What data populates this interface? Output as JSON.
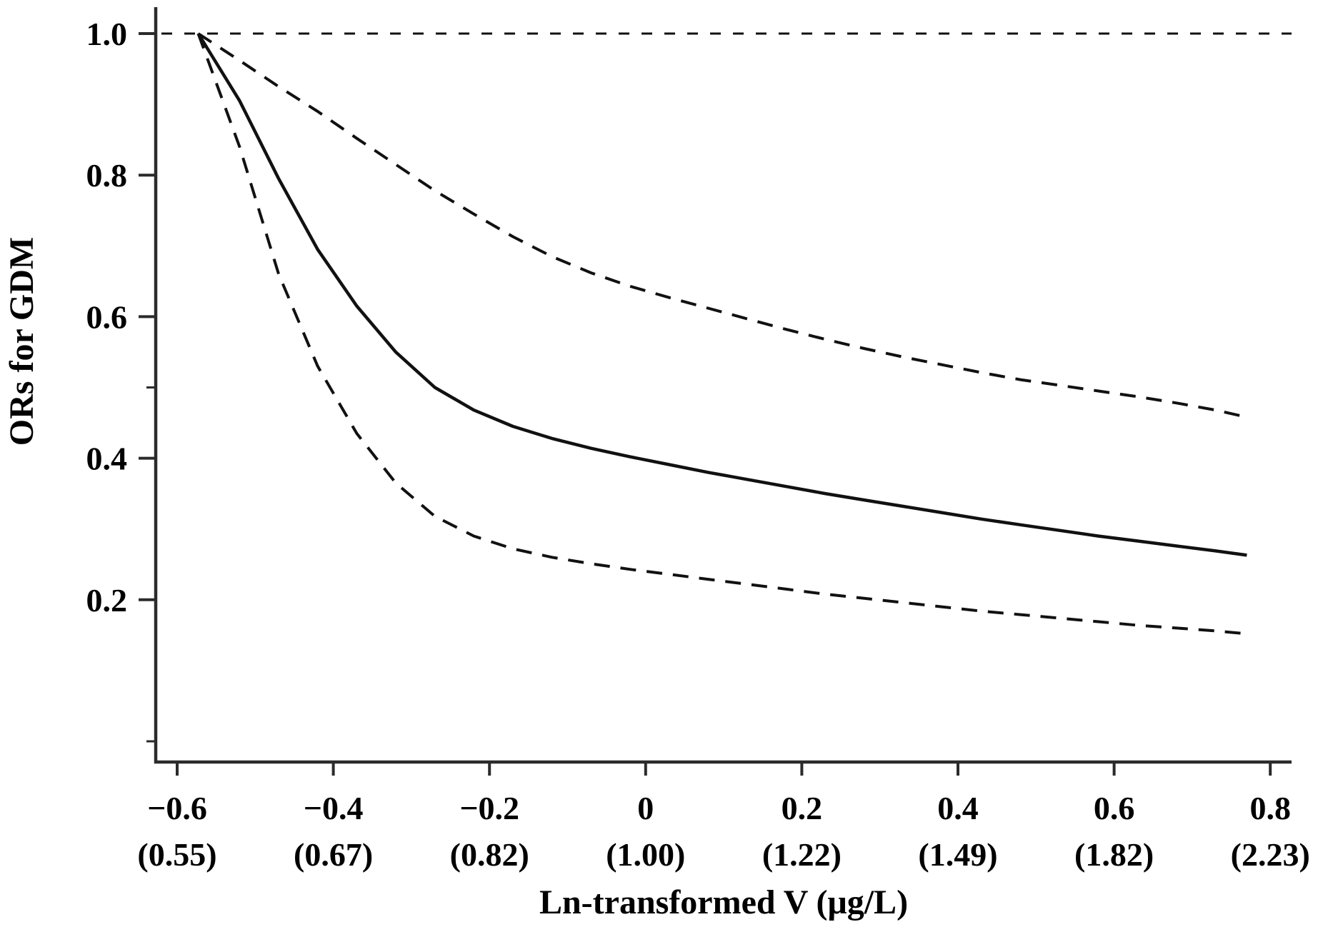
{
  "figure": {
    "kind": "statistical dose-response plot",
    "legend": null,
    "background": "#ffffff"
  },
  "colors": {
    "axis": "#2b2b2b",
    "curve": "#111111",
    "text": "#000000",
    "reference": "#111111"
  },
  "chart_data": {
    "type": "line",
    "title": "",
    "xlabel": "Ln-transformed V (μg/L)",
    "ylabel": "ORs for GDM",
    "xlim": [
      -0.63,
      0.83
    ],
    "ylim": [
      -0.03,
      1.04
    ],
    "grid": false,
    "legend_position": "none",
    "x_axis": {
      "ticks": [
        {
          "value": -0.6,
          "label": "−0.6",
          "sublabel": "(0.55)"
        },
        {
          "value": -0.4,
          "label": "−0.4",
          "sublabel": "(0.67)"
        },
        {
          "value": -0.2,
          "label": "−0.2",
          "sublabel": "(0.82)"
        },
        {
          "value": 0.0,
          "label": "0",
          "sublabel": "(1.00)"
        },
        {
          "value": 0.2,
          "label": "0.2",
          "sublabel": "(1.22)"
        },
        {
          "value": 0.4,
          "label": "0.4",
          "sublabel": "(1.49)"
        },
        {
          "value": 0.6,
          "label": "0.6",
          "sublabel": "(1.82)"
        },
        {
          "value": 0.8,
          "label": "0.8",
          "sublabel": "(2.23)"
        }
      ]
    },
    "y_axis": {
      "ticks": [
        {
          "value": 1.0,
          "label": "1.0"
        },
        {
          "value": 0.8,
          "label": "0.8"
        },
        {
          "value": 0.6,
          "label": "0.6"
        },
        {
          "value": 0.4,
          "label": "0.4"
        },
        {
          "value": 0.2,
          "label": "0.2"
        }
      ],
      "minor_ticks": [
        0.5,
        0.0
      ]
    },
    "reference_line": {
      "y": 1.0,
      "style": "dashed",
      "meaning": "null OR = 1.0"
    },
    "x": [
      -0.573,
      -0.52,
      -0.47,
      -0.42,
      -0.37,
      -0.32,
      -0.27,
      -0.22,
      -0.17,
      -0.12,
      -0.07,
      -0.02,
      0.03,
      0.08,
      0.13,
      0.18,
      0.23,
      0.28,
      0.33,
      0.38,
      0.43,
      0.48,
      0.53,
      0.58,
      0.63,
      0.68,
      0.73,
      0.77
    ],
    "series": [
      {
        "id": "or-estimate",
        "name": "OR point estimate",
        "style": "solid",
        "values": [
          1.0,
          0.905,
          0.795,
          0.695,
          0.615,
          0.55,
          0.5,
          0.468,
          0.445,
          0.428,
          0.414,
          0.402,
          0.391,
          0.38,
          0.37,
          0.36,
          0.35,
          0.341,
          0.332,
          0.323,
          0.314,
          0.306,
          0.298,
          0.29,
          0.283,
          0.276,
          0.269,
          0.263
        ]
      },
      {
        "id": "ci-upper",
        "name": "95% CI upper bound",
        "style": "dashed",
        "values": [
          1.0,
          0.962,
          0.925,
          0.89,
          0.852,
          0.815,
          0.778,
          0.745,
          0.713,
          0.685,
          0.662,
          0.643,
          0.627,
          0.612,
          0.597,
          0.582,
          0.568,
          0.555,
          0.543,
          0.532,
          0.521,
          0.511,
          0.503,
          0.495,
          0.487,
          0.478,
          0.468,
          0.458
        ]
      },
      {
        "id": "ci-lower",
        "name": "95% CI lower bound",
        "style": "dashed",
        "values": [
          1.0,
          0.84,
          0.66,
          0.53,
          0.435,
          0.365,
          0.318,
          0.29,
          0.272,
          0.26,
          0.251,
          0.243,
          0.236,
          0.229,
          0.222,
          0.215,
          0.208,
          0.202,
          0.196,
          0.19,
          0.184,
          0.179,
          0.174,
          0.169,
          0.164,
          0.16,
          0.156,
          0.152
        ]
      }
    ]
  }
}
